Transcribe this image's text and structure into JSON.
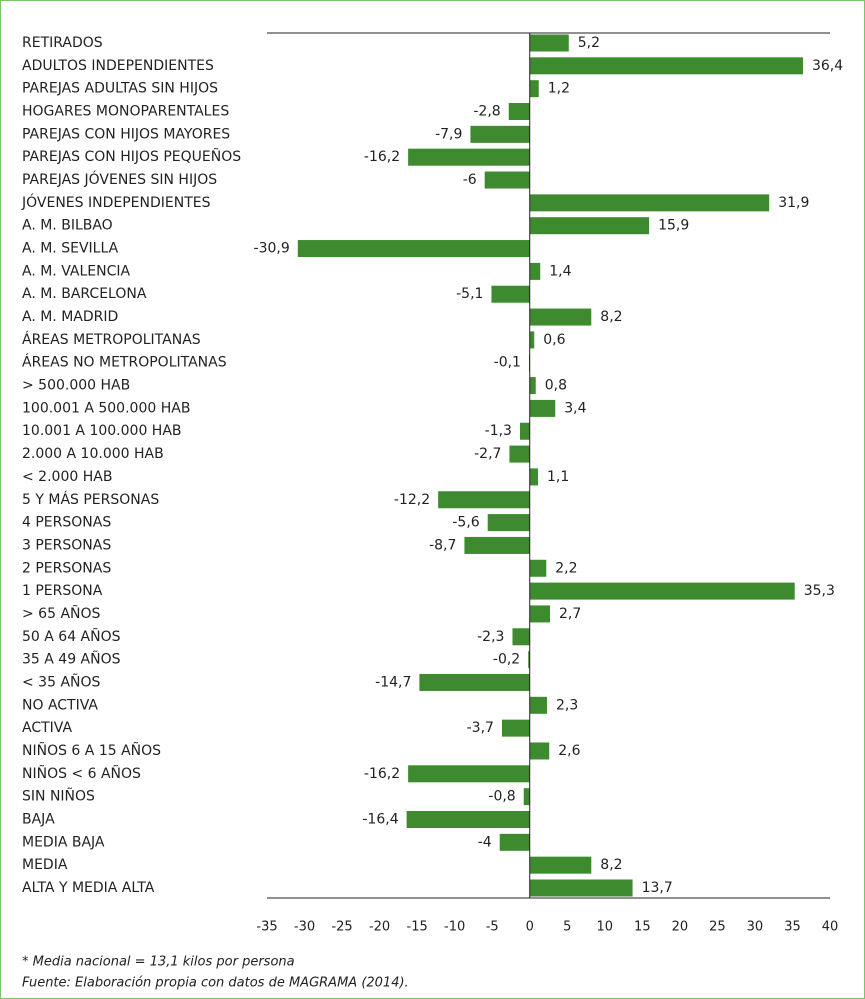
{
  "chart_data": {
    "type": "barh",
    "categories": [
      "RETIRADOS",
      "ADULTOS INDEPENDIENTES",
      "PAREJAS ADULTAS SIN HIJOS",
      "HOGARES MONOPARENTALES",
      "PAREJAS CON HIJOS MAYORES",
      "PAREJAS CON HIJOS PEQUEÑOS",
      "PAREJAS JÓVENES SIN HIJOS",
      "JÓVENES INDEPENDIENTES",
      "A. M. BILBAO",
      "A. M. SEVILLA",
      "A. M. VALENCIA",
      "A. M. BARCELONA",
      "A. M. MADRID",
      "ÁREAS METROPOLITANAS",
      "ÁREAS NO METROPOLITANAS",
      "> 500.000 HAB",
      "100.001 A 500.000 HAB",
      "10.001 A 100.000 HAB",
      "2.000 A 10.000 HAB",
      "< 2.000 HAB",
      "5 Y MÁS PERSONAS",
      "4 PERSONAS",
      "3 PERSONAS",
      "2 PERSONAS",
      "1 PERSONA",
      "> 65 AÑOS",
      "50 A 64 AÑOS",
      "35 A 49 AÑOS",
      "< 35 AÑOS",
      "NO ACTIVA",
      "ACTIVA",
      "NIÑOS 6 A 15 AÑOS",
      "NIÑOS < 6 AÑOS",
      "SIN NIÑOS",
      "BAJA",
      "MEDIA BAJA",
      "MEDIA",
      "ALTA Y MEDIA ALTA"
    ],
    "values": [
      5.2,
      36.4,
      1.2,
      -2.8,
      -7.9,
      -16.2,
      -6,
      31.9,
      15.9,
      -30.9,
      1.4,
      -5.1,
      8.2,
      0.6,
      -0.1,
      0.8,
      3.4,
      -1.3,
      -2.7,
      1.1,
      -12.2,
      -5.6,
      -8.7,
      2.2,
      35.3,
      2.7,
      -2.3,
      -0.2,
      -14.7,
      2.3,
      -3.7,
      2.6,
      -16.2,
      -0.8,
      -16.4,
      -4,
      8.2,
      13.7
    ],
    "value_labels": [
      "5,2",
      "36,4",
      "1,2",
      "-2,8",
      "-7,9",
      "-16,2",
      "-6",
      "31,9",
      "15,9",
      "-30,9",
      "1,4",
      "-5,1",
      "8,2",
      "0,6",
      "-0,1",
      "0,8",
      "3,4",
      "-1,3",
      "-2,7",
      "1,1",
      "-12,2",
      "-5,6",
      "-8,7",
      "2,2",
      "35,3",
      "2,7",
      "-2,3",
      "-0,2",
      "-14,7",
      "2,3",
      "-3,7",
      "2,6",
      "-16,2",
      "-0,8",
      "-16,4",
      "-4",
      "8,2",
      "13,7"
    ],
    "color": "#3d8b2e",
    "xlim": [
      -35,
      40
    ],
    "xticks": [
      -35,
      -30,
      -25,
      -20,
      -15,
      -10,
      -5,
      0,
      5,
      10,
      15,
      20,
      25,
      30,
      35,
      40
    ],
    "notes": [
      "* Media nacional = 13,1 kilos por persona",
      "Fuente: Elaboración propia con datos de MAGRAMA (2014)."
    ]
  }
}
